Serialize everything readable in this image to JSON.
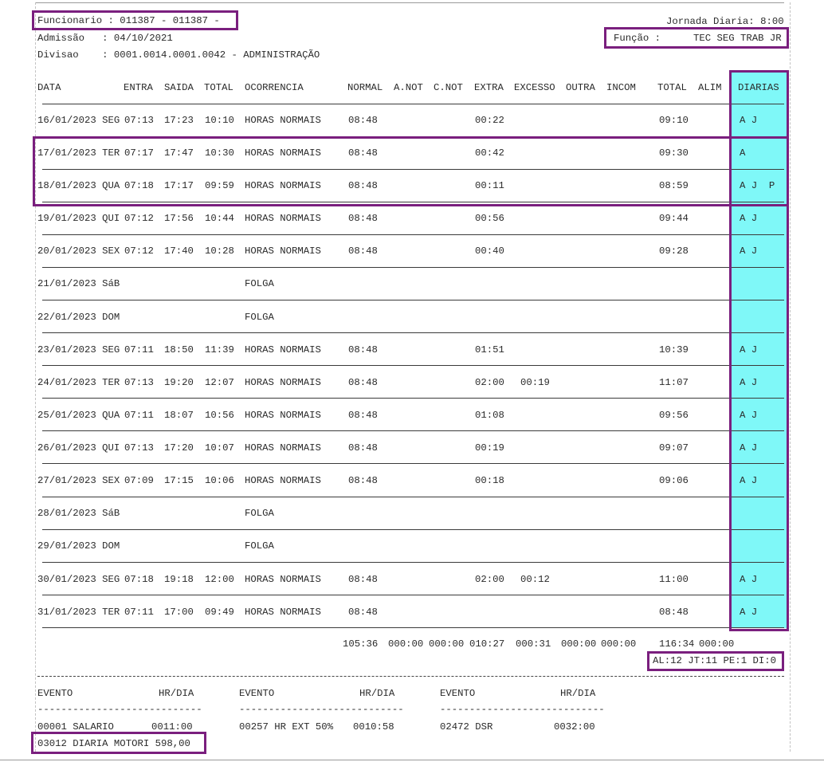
{
  "header": {
    "funcionario": "Funcionario : 011387 - 011387 -",
    "jornada": "Jornada Diaria: 8:00",
    "admissao": "Admissão   : 04/10/2021",
    "funcao_label": "Função :",
    "funcao_value": "TEC SEG TRAB JR",
    "divisao": "Divisao    : 0001.0014.0001.0042 - ADMINISTRAÇÃO"
  },
  "columns": {
    "data": "DATA",
    "entra": "ENTRA",
    "saida": "SAIDA",
    "total": "TOTAL",
    "ocorrencia": "OCORRENCIA",
    "normal": "NORMAL",
    "anot": "A.NOT",
    "cnot": "C.NOT",
    "extra": "EXTRA",
    "excesso": "EXCESSO",
    "outra": "OUTRA",
    "incom": "INCOM",
    "total2": "TOTAL",
    "alim": "ALIM",
    "diarias": "DIARIAS"
  },
  "rows": [
    {
      "date": "16/01/2023 SEG",
      "entra": "07:13",
      "saida": "17:23",
      "total": "10:10",
      "ocorrencia": "HORAS NORMAIS",
      "normal": "08:48",
      "extra": "00:22",
      "excesso": "",
      "total2": "09:10",
      "diarias": "A J"
    },
    {
      "date": "17/01/2023 TER",
      "entra": "07:17",
      "saida": "17:47",
      "total": "10:30",
      "ocorrencia": "HORAS NORMAIS",
      "normal": "08:48",
      "extra": "00:42",
      "excesso": "",
      "total2": "09:30",
      "diarias": "A"
    },
    {
      "date": "18/01/2023 QUA",
      "entra": "07:18",
      "saida": "17:17",
      "total": "09:59",
      "ocorrencia": "HORAS NORMAIS",
      "normal": "08:48",
      "extra": "00:11",
      "excesso": "",
      "total2": "08:59",
      "diarias": "A J  P"
    },
    {
      "date": "19/01/2023 QUI",
      "entra": "07:12",
      "saida": "17:56",
      "total": "10:44",
      "ocorrencia": "HORAS NORMAIS",
      "normal": "08:48",
      "extra": "00:56",
      "excesso": "",
      "total2": "09:44",
      "diarias": "A J"
    },
    {
      "date": "20/01/2023 SEX",
      "entra": "07:12",
      "saida": "17:40",
      "total": "10:28",
      "ocorrencia": "HORAS NORMAIS",
      "normal": "08:48",
      "extra": "00:40",
      "excesso": "",
      "total2": "09:28",
      "diarias": "A J"
    },
    {
      "date": "21/01/2023 SáB",
      "entra": "",
      "saida": "",
      "total": "",
      "ocorrencia": "FOLGA",
      "normal": "",
      "extra": "",
      "excesso": "",
      "total2": "",
      "diarias": ""
    },
    {
      "date": "22/01/2023 DOM",
      "entra": "",
      "saida": "",
      "total": "",
      "ocorrencia": "FOLGA",
      "normal": "",
      "extra": "",
      "excesso": "",
      "total2": "",
      "diarias": ""
    },
    {
      "date": "23/01/2023 SEG",
      "entra": "07:11",
      "saida": "18:50",
      "total": "11:39",
      "ocorrencia": "HORAS NORMAIS",
      "normal": "08:48",
      "extra": "01:51",
      "excesso": "",
      "total2": "10:39",
      "diarias": "A J"
    },
    {
      "date": "24/01/2023 TER",
      "entra": "07:13",
      "saida": "19:20",
      "total": "12:07",
      "ocorrencia": "HORAS NORMAIS",
      "normal": "08:48",
      "extra": "02:00",
      "excesso": "00:19",
      "total2": "11:07",
      "diarias": "A J"
    },
    {
      "date": "25/01/2023 QUA",
      "entra": "07:11",
      "saida": "18:07",
      "total": "10:56",
      "ocorrencia": "HORAS NORMAIS",
      "normal": "08:48",
      "extra": "01:08",
      "excesso": "",
      "total2": "09:56",
      "diarias": "A J"
    },
    {
      "date": "26/01/2023 QUI",
      "entra": "07:13",
      "saida": "17:20",
      "total": "10:07",
      "ocorrencia": "HORAS NORMAIS",
      "normal": "08:48",
      "extra": "00:19",
      "excesso": "",
      "total2": "09:07",
      "diarias": "A J"
    },
    {
      "date": "27/01/2023 SEX",
      "entra": "07:09",
      "saida": "17:15",
      "total": "10:06",
      "ocorrencia": "HORAS NORMAIS",
      "normal": "08:48",
      "extra": "00:18",
      "excesso": "",
      "total2": "09:06",
      "diarias": "A J"
    },
    {
      "date": "28/01/2023 SáB",
      "entra": "",
      "saida": "",
      "total": "",
      "ocorrencia": "FOLGA",
      "normal": "",
      "extra": "",
      "excesso": "",
      "total2": "",
      "diarias": ""
    },
    {
      "date": "29/01/2023 DOM",
      "entra": "",
      "saida": "",
      "total": "",
      "ocorrencia": "FOLGA",
      "normal": "",
      "extra": "",
      "excesso": "",
      "total2": "",
      "diarias": ""
    },
    {
      "date": "30/01/2023 SEG",
      "entra": "07:18",
      "saida": "19:18",
      "total": "12:00",
      "ocorrencia": "HORAS NORMAIS",
      "normal": "08:48",
      "extra": "02:00",
      "excesso": "00:12",
      "total2": "11:00",
      "diarias": "A J"
    },
    {
      "date": "31/01/2023 TER",
      "entra": "07:11",
      "saida": "17:00",
      "total": "09:49",
      "ocorrencia": "HORAS NORMAIS",
      "normal": "08:48",
      "extra": "",
      "excesso": "",
      "total2": "08:48",
      "diarias": "A J"
    }
  ],
  "totals": {
    "normal": "105:36",
    "anot": "000:00",
    "cnot": "000:00",
    "extra": "010:27",
    "excesso": "000:31",
    "outra": "000:00",
    "incom": "000:00",
    "total": "116:34",
    "alim": "000:00",
    "diarias_summary": "AL:12 JT:11 PE:1 DI:0"
  },
  "events": {
    "col_label": "EVENTO",
    "col_hr": "HR/DIA",
    "dashes": "----------------------------",
    "items": [
      {
        "name": "00001 SALARIO",
        "value": "0011:00"
      },
      {
        "name": "00257 HR EXT 50%",
        "value": "0010:58"
      },
      {
        "name": "02472 DSR",
        "value": "0032:00"
      },
      {
        "name": "03012 DIARIA MOTORI",
        "value": "598,00"
      }
    ]
  },
  "colors": {
    "highlight_border": "#7a1f7e",
    "diarias_background": "#7ff8f8"
  }
}
